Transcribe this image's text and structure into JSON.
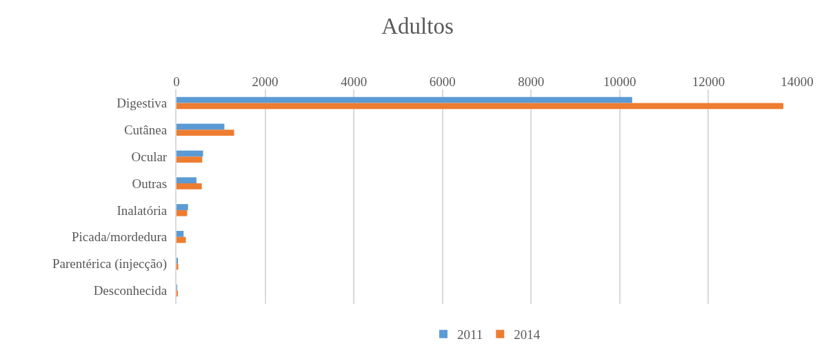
{
  "chart_data": {
    "type": "bar",
    "orientation": "horizontal",
    "title": "Adultos",
    "categories": [
      "Digestiva",
      "Cutânea",
      "Ocular",
      "Outras",
      "Inalatória",
      "Picada/mordedura",
      "Parentérica (injecção)",
      "Desconhecida"
    ],
    "series": [
      {
        "name": "2011",
        "color": "#5b9bd5",
        "values": [
          10280,
          1080,
          600,
          450,
          260,
          160,
          30,
          10
        ]
      },
      {
        "name": "2014",
        "color": "#ed7d31",
        "values": [
          13690,
          1300,
          580,
          570,
          240,
          210,
          40,
          30
        ]
      }
    ],
    "xlim": [
      0,
      14000
    ],
    "xticks": [
      0,
      2000,
      4000,
      6000,
      8000,
      10000,
      12000,
      14000
    ],
    "grid": "x",
    "legend": "bottom"
  }
}
